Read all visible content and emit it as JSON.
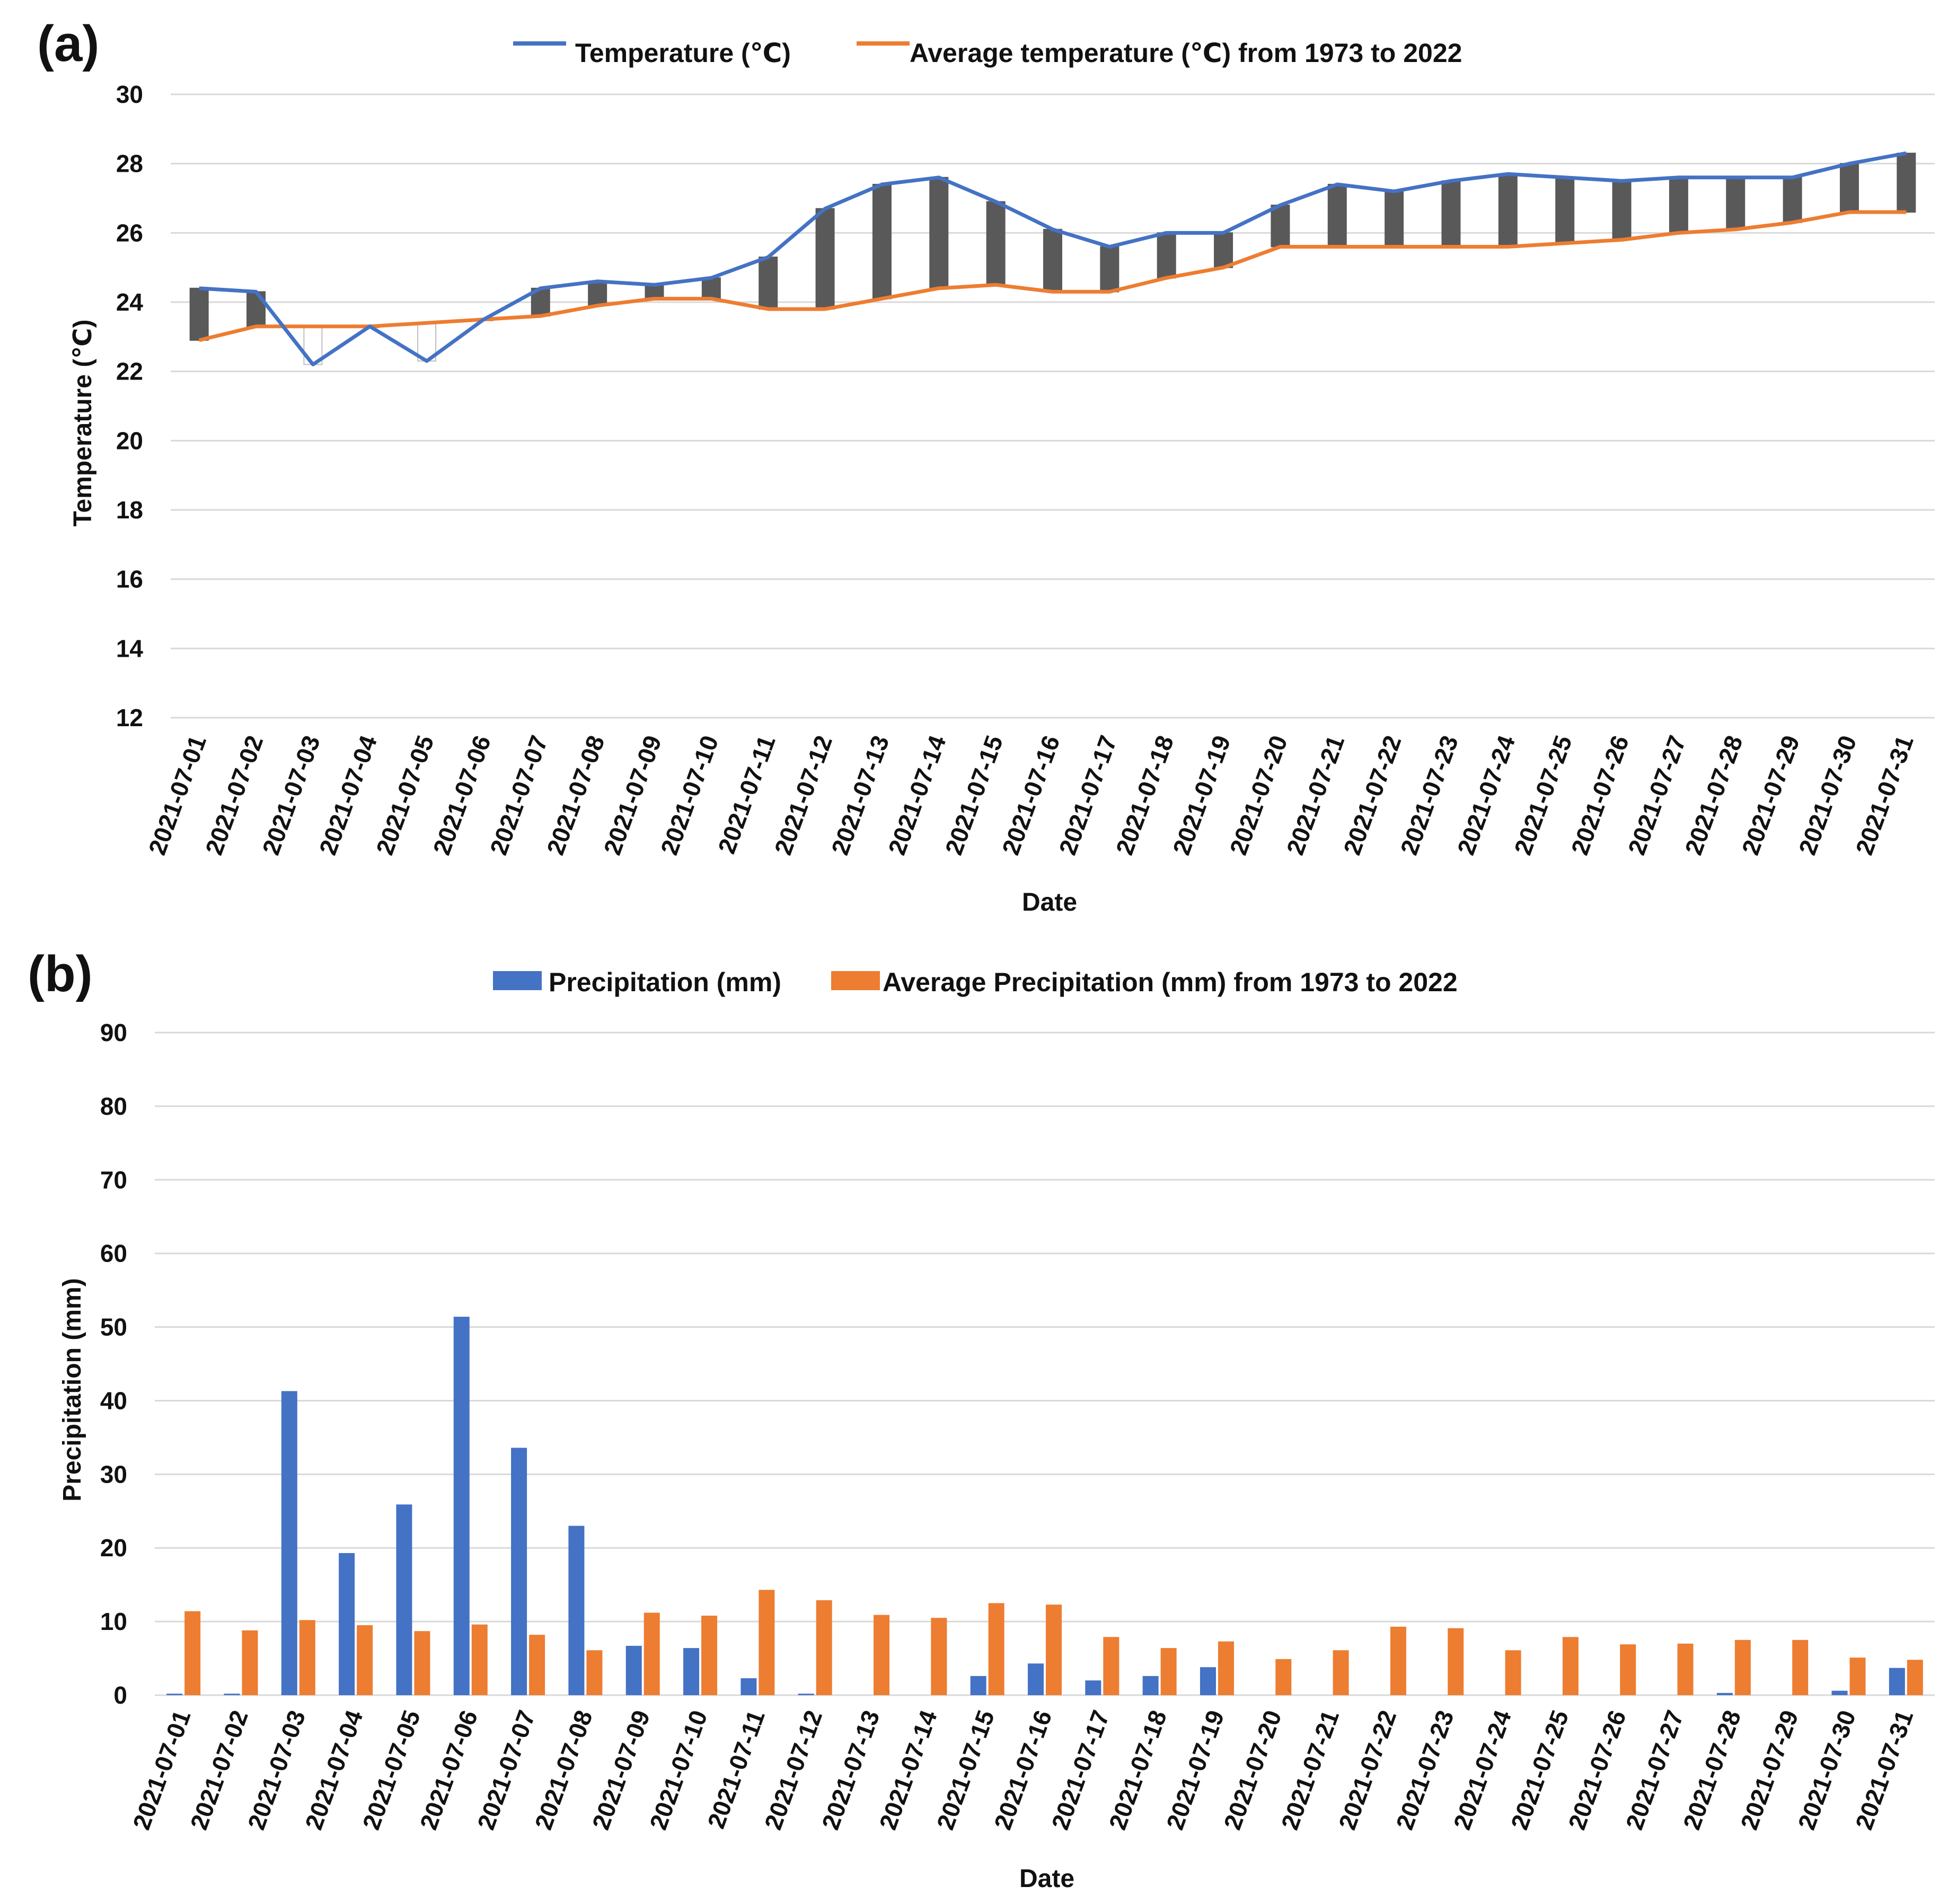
{
  "colors": {
    "temperature": "#4472C4",
    "average": "#ED7D31",
    "updown_bar": "#595959",
    "grid": "#D9D9D9"
  },
  "chart_data": [
    {
      "panel": "(a)",
      "type": "line",
      "title": "",
      "xlabel": "Date",
      "ylabel": "Temperature (℃)",
      "ylim": [
        12,
        30
      ],
      "yticks": [
        "12",
        "14",
        "16",
        "18",
        "20",
        "22",
        "24",
        "26",
        "28",
        "30"
      ],
      "grid": true,
      "legend_position": "top",
      "categories": [
        "2021-07-01",
        "2021-07-02",
        "2021-07-03",
        "2021-07-04",
        "2021-07-05",
        "2021-07-06",
        "2021-07-07",
        "2021-07-08",
        "2021-07-09",
        "2021-07-10",
        "2021-07-11",
        "2021-07-12",
        "2021-07-13",
        "2021-07-14",
        "2021-07-15",
        "2021-07-16",
        "2021-07-17",
        "2021-07-18",
        "2021-07-19",
        "2021-07-20",
        "2021-07-21",
        "2021-07-22",
        "2021-07-23",
        "2021-07-24",
        "2021-07-25",
        "2021-07-26",
        "2021-07-27",
        "2021-07-28",
        "2021-07-29",
        "2021-07-30",
        "2021-07-31"
      ],
      "series": [
        {
          "name": "Temperature (℃)",
          "values": [
            24.4,
            24.3,
            22.2,
            23.3,
            22.3,
            23.5,
            24.4,
            24.6,
            24.5,
            24.7,
            25.3,
            26.7,
            27.4,
            27.6,
            26.9,
            26.1,
            25.6,
            26.0,
            26.0,
            26.8,
            27.4,
            27.2,
            27.5,
            27.7,
            27.6,
            27.5,
            27.6,
            27.6,
            27.6,
            28.0,
            28.3
          ]
        },
        {
          "name": "Average temperature (℃) from 1973 to 2022",
          "values": [
            22.9,
            23.3,
            23.3,
            23.3,
            23.4,
            23.5,
            23.6,
            23.9,
            24.1,
            24.1,
            23.8,
            23.8,
            24.1,
            24.4,
            24.5,
            24.3,
            24.3,
            24.7,
            25.0,
            25.6,
            25.6,
            25.6,
            25.6,
            25.6,
            25.7,
            25.8,
            26.0,
            26.1,
            26.3,
            26.6,
            26.6
          ]
        }
      ]
    },
    {
      "panel": "(b)",
      "type": "bar",
      "title": "",
      "xlabel": "Date",
      "ylabel": "Precipitation (mm)",
      "ylim": [
        0,
        90
      ],
      "yticks": [
        "0",
        "10",
        "20",
        "30",
        "40",
        "50",
        "60",
        "70",
        "80",
        "90"
      ],
      "grid": true,
      "legend_position": "top",
      "categories": [
        "2021-07-01",
        "2021-07-02",
        "2021-07-03",
        "2021-07-04",
        "2021-07-05",
        "2021-07-06",
        "2021-07-07",
        "2021-07-08",
        "2021-07-09",
        "2021-07-10",
        "2021-07-11",
        "2021-07-12",
        "2021-07-13",
        "2021-07-14",
        "2021-07-15",
        "2021-07-16",
        "2021-07-17",
        "2021-07-18",
        "2021-07-19",
        "2021-07-20",
        "2021-07-21",
        "2021-07-22",
        "2021-07-23",
        "2021-07-24",
        "2021-07-25",
        "2021-07-26",
        "2021-07-27",
        "2021-07-28",
        "2021-07-29",
        "2021-07-30",
        "2021-07-31"
      ],
      "series": [
        {
          "name": "Precipitation (mm)",
          "values": [
            0.2,
            0.2,
            41.3,
            19.3,
            25.9,
            51.4,
            33.6,
            23.0,
            6.7,
            6.4,
            2.3,
            0.2,
            0,
            0,
            2.6,
            4.3,
            2.0,
            2.6,
            3.8,
            0,
            0,
            0,
            0,
            0,
            0,
            0,
            0,
            0.3,
            0,
            0.6,
            3.7
          ]
        },
        {
          "name": "Average Precipitation (mm) from 1973 to 2022",
          "values": [
            11.4,
            8.8,
            10.2,
            9.5,
            8.7,
            9.6,
            8.2,
            6.1,
            11.2,
            10.8,
            14.3,
            12.9,
            10.9,
            10.5,
            12.5,
            12.3,
            7.9,
            6.4,
            7.3,
            4.9,
            6.1,
            9.3,
            9.1,
            6.1,
            7.9,
            6.9,
            7.0,
            7.5,
            7.5,
            5.1,
            4.8
          ]
        }
      ]
    }
  ]
}
